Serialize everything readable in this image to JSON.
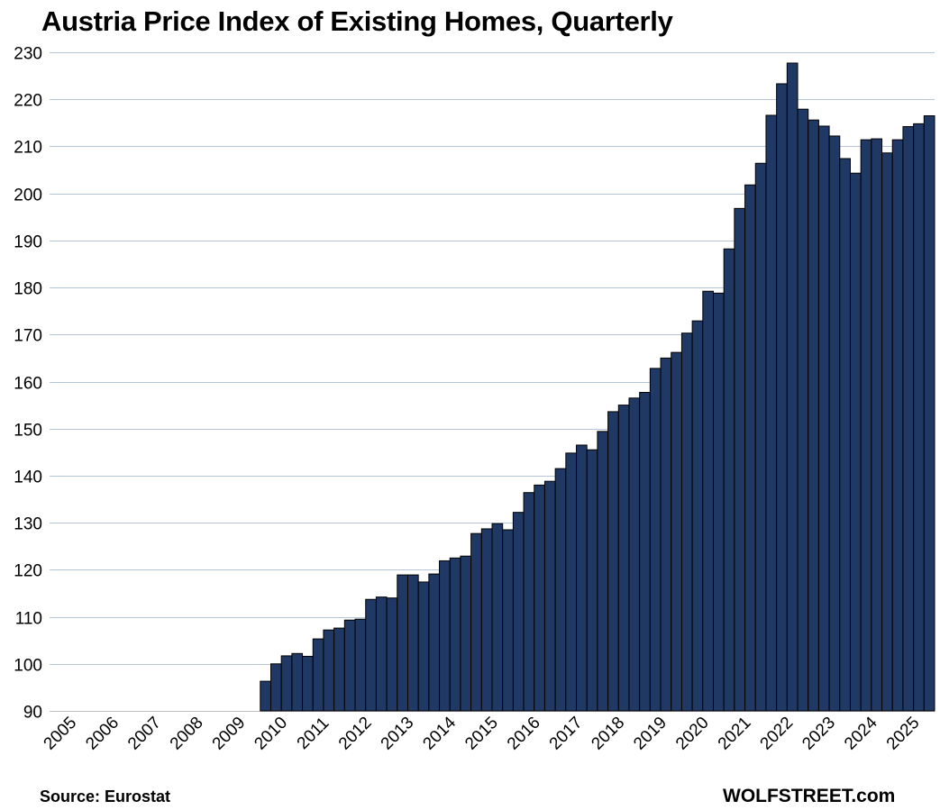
{
  "title": "Austria Price Index of Existing Homes, Quarterly",
  "source": "Source: Eurostat",
  "brand": "WOLFSTREET.com",
  "colors": {
    "bar": "#203864",
    "bar_edge": "#000000",
    "grid": "#b7c5d8",
    "axis": "#bfbfbf"
  },
  "chart_data": {
    "type": "bar",
    "title": "Austria Price Index of Existing Homes, Quarterly",
    "xlabel": "",
    "ylabel": "",
    "ylim": [
      90,
      230
    ],
    "yticks": [
      90,
      100,
      110,
      120,
      130,
      140,
      150,
      160,
      170,
      180,
      190,
      200,
      210,
      220,
      230
    ],
    "xticks": [
      "2005",
      "2006",
      "2007",
      "2008",
      "2009",
      "2010",
      "2011",
      "2012",
      "2013",
      "2014",
      "2015",
      "2016",
      "2017",
      "2018",
      "2019",
      "2020",
      "2021",
      "2022",
      "2023",
      "2024",
      "2025"
    ],
    "grid": true,
    "legend": "none",
    "categories": [
      "2005Q1",
      "2005Q2",
      "2005Q3",
      "2005Q4",
      "2006Q1",
      "2006Q2",
      "2006Q3",
      "2006Q4",
      "2007Q1",
      "2007Q2",
      "2007Q3",
      "2007Q4",
      "2008Q1",
      "2008Q2",
      "2008Q3",
      "2008Q4",
      "2009Q1",
      "2009Q2",
      "2009Q3",
      "2009Q4",
      "2010Q1",
      "2010Q2",
      "2010Q3",
      "2010Q4",
      "2011Q1",
      "2011Q2",
      "2011Q3",
      "2011Q4",
      "2012Q1",
      "2012Q2",
      "2012Q3",
      "2012Q4",
      "2013Q1",
      "2013Q2",
      "2013Q3",
      "2013Q4",
      "2014Q1",
      "2014Q2",
      "2014Q3",
      "2014Q4",
      "2015Q1",
      "2015Q2",
      "2015Q3",
      "2015Q4",
      "2016Q1",
      "2016Q2",
      "2016Q3",
      "2016Q4",
      "2017Q1",
      "2017Q2",
      "2017Q3",
      "2017Q4",
      "2018Q1",
      "2018Q2",
      "2018Q3",
      "2018Q4",
      "2019Q1",
      "2019Q2",
      "2019Q3",
      "2019Q4",
      "2020Q1",
      "2020Q2",
      "2020Q3",
      "2020Q4",
      "2021Q1",
      "2021Q2",
      "2021Q3",
      "2021Q4",
      "2022Q1",
      "2022Q2",
      "2022Q3",
      "2022Q4",
      "2023Q1",
      "2023Q2",
      "2023Q3",
      "2023Q4",
      "2024Q1",
      "2024Q2",
      "2024Q3",
      "2024Q4",
      "2025Q1",
      "2025Q2",
      "2025Q3",
      "2025Q4"
    ],
    "values": [
      null,
      null,
      null,
      null,
      null,
      null,
      null,
      null,
      null,
      null,
      null,
      null,
      null,
      null,
      null,
      null,
      null,
      null,
      null,
      null,
      96.3,
      100.0,
      101.7,
      102.2,
      101.6,
      105.3,
      107.2,
      107.6,
      109.3,
      109.5,
      113.7,
      114.2,
      114.0,
      118.9,
      118.9,
      117.4,
      119.1,
      121.9,
      122.5,
      122.9,
      127.7,
      128.7,
      129.8,
      128.5,
      132.2,
      136.4,
      138.0,
      138.8,
      141.5,
      144.8,
      146.5,
      145.5,
      149.4,
      153.6,
      155.0,
      156.5,
      157.7,
      162.8,
      165.0,
      166.2,
      170.3,
      172.9,
      179.2,
      178.8,
      188.2,
      196.8,
      201.8,
      206.4,
      216.6,
      223.3,
      227.7,
      217.9,
      215.6,
      214.3,
      212.2,
      207.4,
      204.3,
      211.4,
      211.6,
      208.6,
      211.4,
      214.2,
      214.8,
      216.5
    ]
  }
}
